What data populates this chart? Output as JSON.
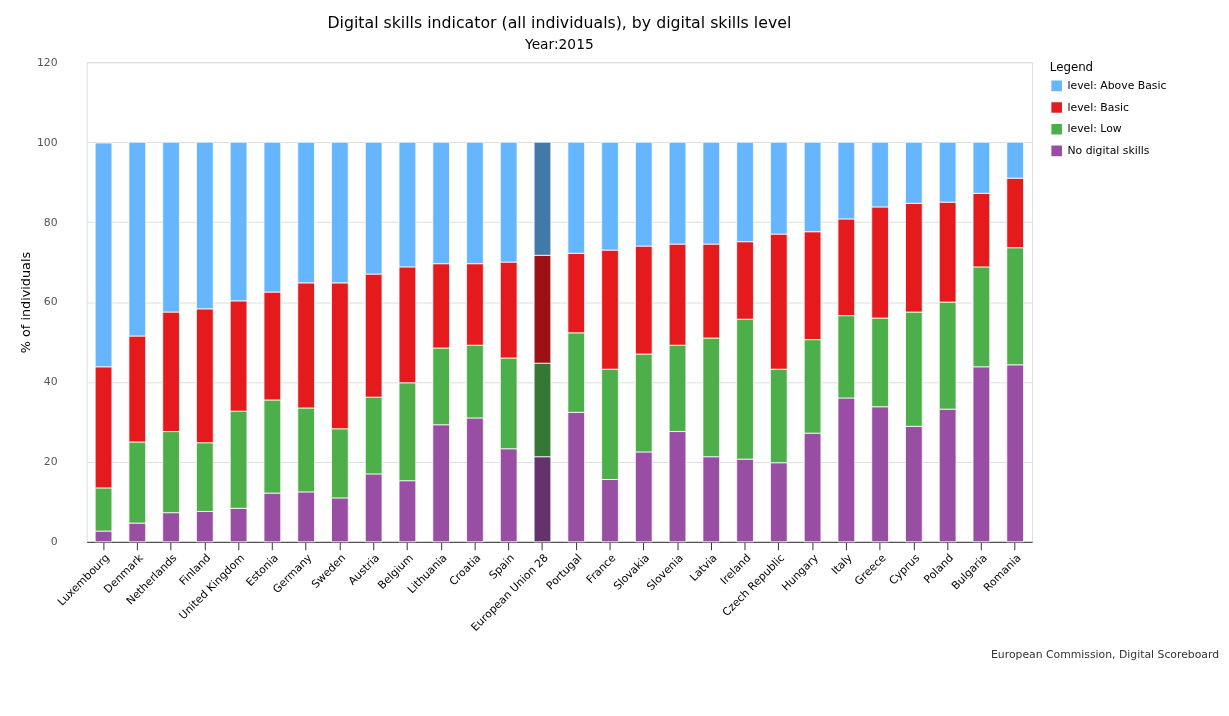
{
  "chart_data": {
    "type": "bar",
    "title": "Digital skills indicator (all individuals), by digital skills level",
    "subtitle": "Year:2015",
    "ylabel": "% of individuals",
    "legend_title": "Legend",
    "categories": [
      "Luxembourg",
      "Denmark",
      "Netherlands",
      "Finland",
      "United Kingdom",
      "Estonia",
      "Germany",
      "Sweden",
      "Austria",
      "Belgium",
      "Lithuania",
      "Croatia",
      "Spain",
      "European Union 28",
      "Portugal",
      "France",
      "Slovakia",
      "Slovenia",
      "Latvia",
      "Ireland",
      "Czech Republic",
      "Hungary",
      "Italy",
      "Greece",
      "Cyprus",
      "Poland",
      "Bulgaria",
      "Romania"
    ],
    "stacked": true,
    "ylim": [
      0,
      120
    ],
    "yticks": [
      0,
      20,
      40,
      60,
      80,
      100,
      120
    ],
    "grid": "y",
    "legend": "top right",
    "series": [
      {
        "name": "No digital skills",
        "color": "#984ea3",
        "colors": [
          "#984ea3",
          "#984ea3",
          "#984ea3",
          "#984ea3",
          "#984ea3",
          "#984ea3",
          "#984ea3",
          "#984ea3",
          "#984ea3",
          "#984ea3",
          "#984ea3",
          "#984ea3",
          "#984ea3",
          "#64336e",
          "#984ea3",
          "#984ea3",
          "#984ea3",
          "#984ea3",
          "#984ea3",
          "#984ea3",
          "#984ea3",
          "#984ea3",
          "#984ea3",
          "#984ea3",
          "#984ea3",
          "#984ea3",
          "#984ea3",
          "#984ea3"
        ],
        "values": [
          2.7,
          4.7,
          7.3,
          7.6,
          8.4,
          12.2,
          12.5,
          11,
          17,
          15.3,
          29.3,
          31,
          23.3,
          21.3,
          32.4,
          15.6,
          22.5,
          27.6,
          21.3,
          20.7,
          19.8,
          27.2,
          36,
          33.8,
          28.9,
          33.2,
          43.8,
          44.3
        ]
      },
      {
        "name": "level: Low",
        "color": "#4daf4a",
        "colors": [
          "#4daf4a",
          "#4daf4a",
          "#4daf4a",
          "#4daf4a",
          "#4daf4a",
          "#4daf4a",
          "#4daf4a",
          "#4daf4a",
          "#4daf4a",
          "#4daf4a",
          "#4daf4a",
          "#4daf4a",
          "#4daf4a",
          "#357735",
          "#4daf4a",
          "#4daf4a",
          "#4daf4a",
          "#4daf4a",
          "#4daf4a",
          "#4daf4a",
          "#4daf4a",
          "#4daf4a",
          "#4daf4a",
          "#4daf4a",
          "#4daf4a",
          "#4daf4a",
          "#4daf4a",
          "#4daf4a"
        ],
        "values": [
          10.8,
          20.3,
          20.3,
          17.2,
          24.3,
          23.3,
          21,
          17.3,
          19.2,
          24.5,
          19.2,
          18.2,
          22.7,
          23.4,
          19.9,
          27.6,
          24.5,
          21.6,
          29.7,
          35,
          23.4,
          23.4,
          20.6,
          22.2,
          28.6,
          26.8,
          25,
          29.3
        ]
      },
      {
        "name": "level: Basic",
        "color": "#e41a1c",
        "colors": [
          "#e41a1c",
          "#e41a1c",
          "#e41a1c",
          "#e41a1c",
          "#e41a1c",
          "#e41a1c",
          "#e41a1c",
          "#e41a1c",
          "#e41a1c",
          "#e41a1c",
          "#e41a1c",
          "#e41a1c",
          "#e41a1c",
          "#9b1114",
          "#e41a1c",
          "#e41a1c",
          "#e41a1c",
          "#e41a1c",
          "#e41a1c",
          "#e41a1c",
          "#e41a1c",
          "#e41a1c",
          "#e41a1c",
          "#e41a1c",
          "#e41a1c",
          "#e41a1c",
          "#e41a1c",
          "#e41a1c"
        ],
        "values": [
          30.3,
          26.5,
          29.9,
          33.5,
          27.6,
          27,
          31.3,
          36.5,
          30.8,
          29,
          21.1,
          20.4,
          24,
          27,
          19.9,
          29.8,
          27,
          25.3,
          23.5,
          19.4,
          33.8,
          27,
          24.2,
          27.8,
          27.2,
          25,
          18.4,
          17.4
        ]
      },
      {
        "name": "level: Above Basic",
        "color": "#66b6ff",
        "colors": [
          "#66b6ff",
          "#66b6ff",
          "#66b6ff",
          "#66b6ff",
          "#66b6ff",
          "#66b6ff",
          "#66b6ff",
          "#66b6ff",
          "#66b6ff",
          "#66b6ff",
          "#66b6ff",
          "#66b6ff",
          "#66b6ff",
          "#4279a8",
          "#66b6ff",
          "#66b6ff",
          "#66b6ff",
          "#66b6ff",
          "#66b6ff",
          "#66b6ff",
          "#66b6ff",
          "#66b6ff",
          "#66b6ff",
          "#66b6ff",
          "#66b6ff",
          "#66b6ff",
          "#66b6ff",
          "#66b6ff"
        ],
        "values": [
          56,
          48.5,
          42.5,
          41.7,
          39.7,
          37.5,
          35.2,
          35.2,
          33,
          31.2,
          30.4,
          30.4,
          30,
          28.3,
          27.8,
          27,
          26,
          25.5,
          25.5,
          24.9,
          23,
          22.4,
          19.2,
          16.2,
          15.3,
          15,
          12.8,
          9
        ]
      }
    ],
    "annotations": [
      "European Commission, Digital Scoreboard"
    ]
  }
}
